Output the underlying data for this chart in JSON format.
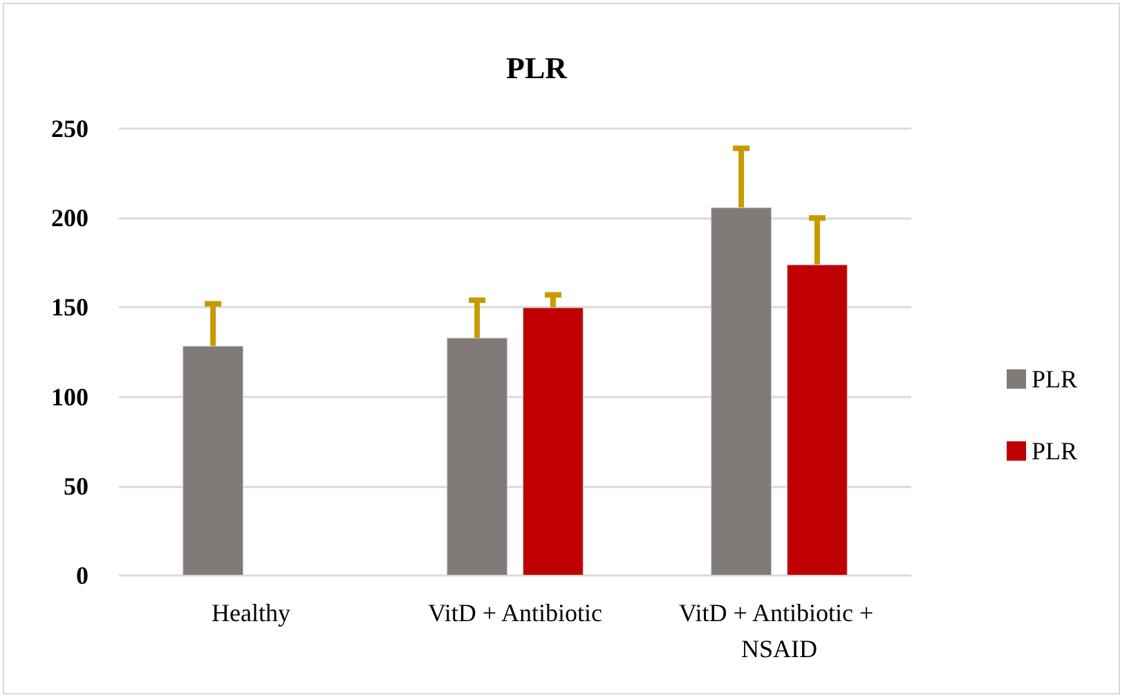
{
  "chart_data": {
    "type": "bar",
    "title": "PLR",
    "categories": [
      "Healthy",
      "VitD + Antibiotic",
      "VitD + Antibiotic + NSAID"
    ],
    "series": [
      {
        "name": "PLR",
        "color": "#807b79",
        "values": [
          128.5,
          133,
          206
        ],
        "errors": [
          [
            128.5,
            152
          ],
          [
            133,
            154
          ],
          [
            206,
            239
          ]
        ]
      },
      {
        "name": "PLR",
        "color": "#c00000",
        "values": [
          null,
          150,
          174
        ],
        "errors": [
          null,
          [
            150,
            157
          ],
          [
            174,
            200
          ]
        ]
      }
    ],
    "ylim": [
      0,
      250
    ],
    "yticks": [
      0,
      50,
      100,
      150,
      200,
      250
    ],
    "grid": "y",
    "legend": "right"
  }
}
